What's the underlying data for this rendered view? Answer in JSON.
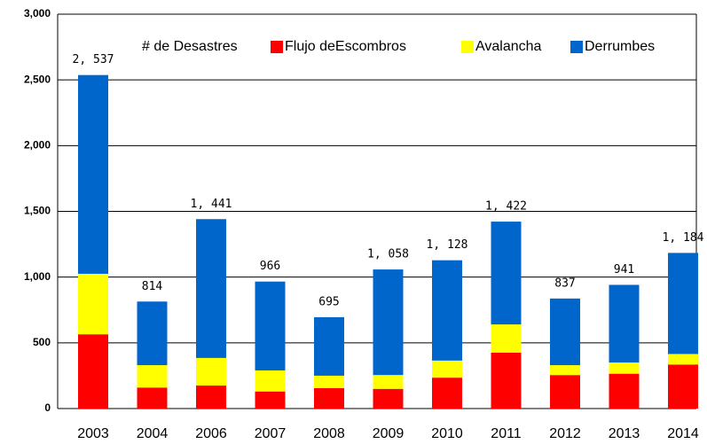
{
  "chart_data": {
    "type": "stacked_bar",
    "legend_title": "# de Desastres",
    "categories": [
      "2003",
      "2004",
      "2006",
      "2007",
      "2008",
      "2009",
      "2010",
      "2011",
      "2012",
      "2013",
      "2014"
    ],
    "series": [
      {
        "name": "Flujo deEscombros",
        "color": "#ff0000",
        "values": [
          565,
          160,
          175,
          130,
          155,
          150,
          235,
          425,
          255,
          265,
          335
        ]
      },
      {
        "name": "Avalancha",
        "color": "#ffff00",
        "values": [
          460,
          170,
          210,
          160,
          95,
          105,
          130,
          215,
          75,
          85,
          80
        ]
      },
      {
        "name": "Derrumbes",
        "color": "#0066cc",
        "values": [
          1512,
          484,
          1056,
          676,
          445,
          803,
          763,
          782,
          507,
          591,
          769
        ]
      }
    ],
    "totals": [
      2537,
      814,
      1441,
      966,
      695,
      1058,
      1128,
      1422,
      837,
      941,
      1184
    ],
    "total_labels": [
      "2, 537",
      "814",
      "1, 441",
      "966",
      "695",
      "1, 058",
      "1, 128",
      "1, 422",
      "837",
      "941",
      "1, 184"
    ],
    "ylim": [
      0,
      3000
    ],
    "yticks": [
      0,
      500,
      {
        "value": 1000,
        "label": "1,000"
      },
      {
        "value": 1500,
        "label": "1,500"
      },
      {
        "value": 2000,
        "label": "2,000"
      },
      {
        "value": 2500,
        "label": "2,500"
      },
      {
        "value": 3000,
        "label": "3,000"
      }
    ],
    "grid": true,
    "legend": "top"
  }
}
